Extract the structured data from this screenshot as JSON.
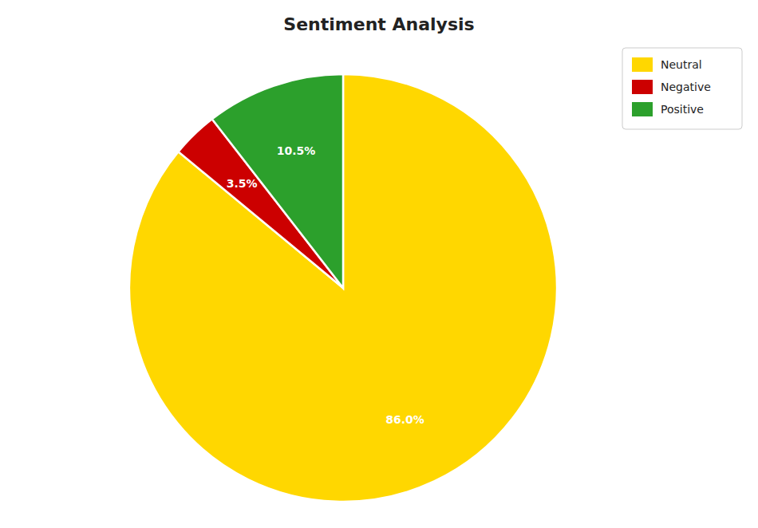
{
  "chart_data": {
    "type": "pie",
    "title": "Sentiment Analysis",
    "categories": [
      "Neutral",
      "Negative",
      "Positive"
    ],
    "values": [
      86.0,
      3.5,
      10.5
    ],
    "value_labels": [
      "86.0%",
      "3.5%",
      "10.5%"
    ],
    "colors": [
      "#FFD700",
      "#CC0000",
      "#2ca02c"
    ],
    "data_labels": true,
    "legend": "upper right"
  }
}
